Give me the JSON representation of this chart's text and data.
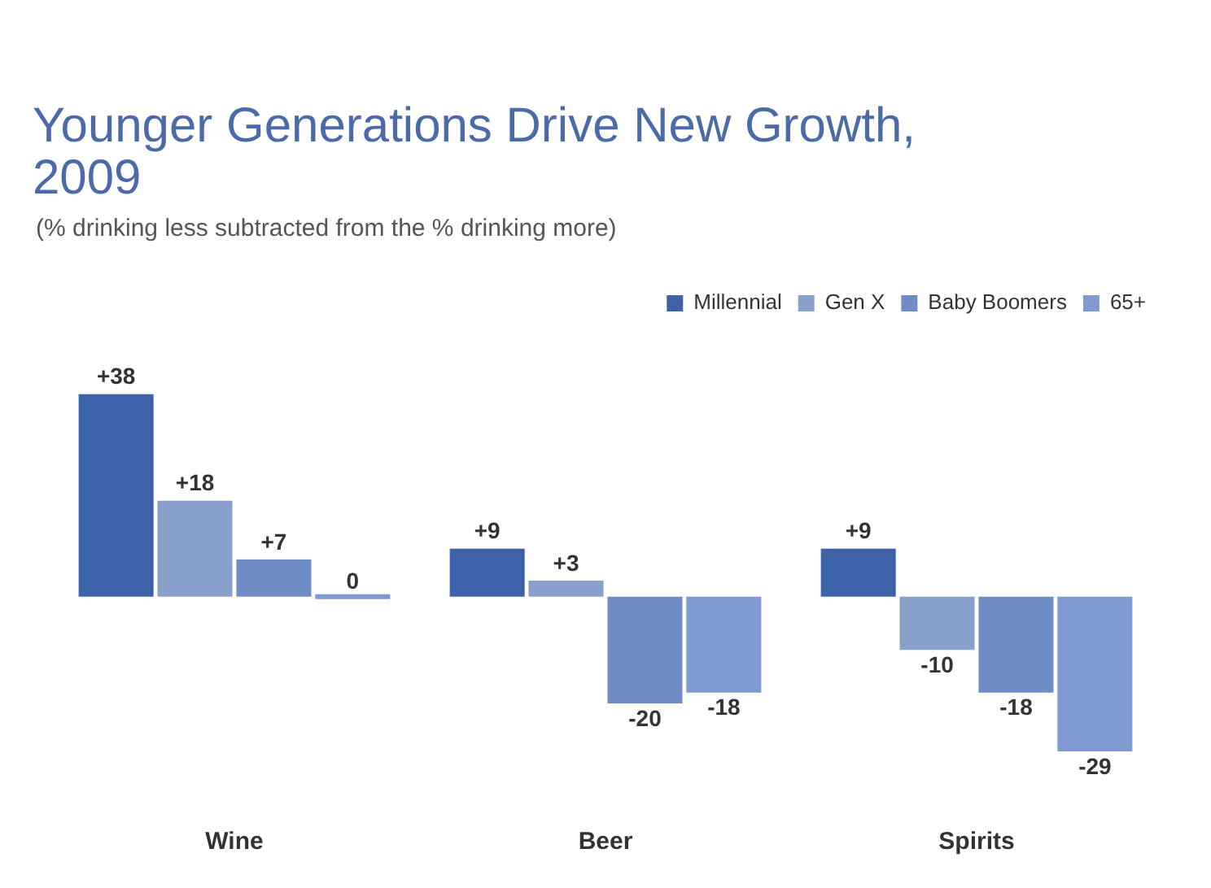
{
  "chart_data": {
    "type": "bar",
    "title": "Younger Generations Drive New Growth, 2009",
    "subtitle": "(% drinking less subtracted from the % drinking more)",
    "categories": [
      "Wine",
      "Beer",
      "Spirits"
    ],
    "series": [
      {
        "name": "Millennial",
        "color": "#3d62a8",
        "values": [
          38,
          9,
          9
        ],
        "value_labels": [
          "+38",
          "+9",
          "+9"
        ]
      },
      {
        "name": "Gen X",
        "color": "#8aa0cc",
        "values": [
          18,
          3,
          -10
        ],
        "value_labels": [
          "+18",
          "+3",
          "-10"
        ]
      },
      {
        "name": "Baby Boomers",
        "color": "#6f8cc4",
        "values": [
          7,
          -20,
          -18
        ],
        "value_labels": [
          "+7",
          "-20",
          "-18"
        ]
      },
      {
        "name": "65+",
        "color": "#7f9ad0",
        "values": [
          0,
          -18,
          -29
        ],
        "value_labels": [
          "0",
          "-18",
          "-29"
        ]
      }
    ],
    "legend": "top right",
    "grid": false
  }
}
